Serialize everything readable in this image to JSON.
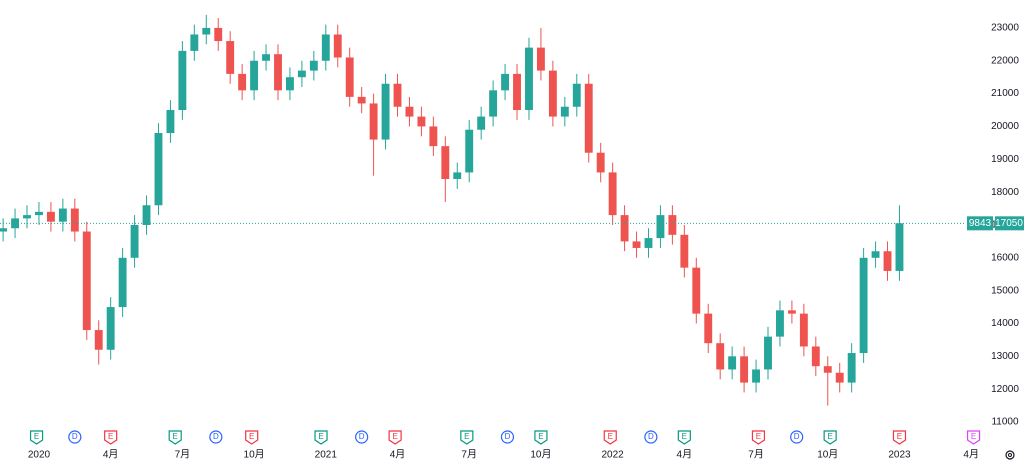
{
  "chart_data": {
    "type": "candlestick",
    "up_color": "#26a69a",
    "down_color": "#ef5350",
    "grid": false,
    "xlim": [
      -1.63,
      41.21
    ],
    "ylim": [
      10300,
      23850
    ],
    "yticks": [
      11000,
      12000,
      13000,
      14000,
      15000,
      16000,
      17000,
      18000,
      19000,
      20000,
      21000,
      22000,
      23000
    ],
    "xticks": [
      {
        "value": 0,
        "label": "2020"
      },
      {
        "value": 3,
        "label": "4月"
      },
      {
        "value": 6,
        "label": "7月"
      },
      {
        "value": 9,
        "label": "10月"
      },
      {
        "value": 12,
        "label": "2021"
      },
      {
        "value": 15,
        "label": "4月"
      },
      {
        "value": 18,
        "label": "7月"
      },
      {
        "value": 21,
        "label": "10月"
      },
      {
        "value": 24,
        "label": "2022"
      },
      {
        "value": 27,
        "label": "4月"
      },
      {
        "value": 30,
        "label": "7月"
      },
      {
        "value": 33,
        "label": "10月"
      },
      {
        "value": 36,
        "label": "2023"
      },
      {
        "value": 39,
        "label": "4月"
      }
    ],
    "x": [
      -1.5,
      -1,
      -0.5,
      0,
      0.5,
      1,
      1.5,
      2,
      2.5,
      3,
      3.5,
      4,
      4.5,
      5,
      5.5,
      6,
      6.5,
      7,
      7.5,
      8,
      8.5,
      9,
      9.5,
      10,
      10.5,
      11,
      11.5,
      12,
      12.5,
      13,
      13.5,
      14,
      14.5,
      15,
      15.5,
      16,
      16.5,
      17,
      17.5,
      18,
      18.5,
      19,
      19.5,
      20,
      20.5,
      21,
      21.5,
      22,
      22.5,
      23,
      23.5,
      24,
      24.5,
      25,
      25.5,
      26,
      26.5,
      27,
      27.5,
      28,
      28.5,
      29,
      29.5,
      30,
      30.5,
      31,
      31.5,
      32,
      32.5,
      33,
      33.5,
      34,
      34.5,
      35,
      35.5,
      36
    ],
    "open": [
      16800,
      16900,
      17200,
      17300,
      17400,
      17100,
      17500,
      16800,
      13800,
      13200,
      14500,
      16000,
      17000,
      17600,
      19800,
      20500,
      22300,
      22800,
      23000,
      22600,
      21600,
      21100,
      22000,
      22200,
      21100,
      21500,
      21700,
      22000,
      22800,
      22100,
      20900,
      20700,
      19600,
      21300,
      20600,
      20300,
      20000,
      19400,
      18400,
      18600,
      19900,
      20300,
      21100,
      21600,
      20500,
      22400,
      21700,
      20300,
      20600,
      21300,
      19200,
      18600,
      17300,
      16500,
      16300,
      16600,
      17300,
      16700,
      15700,
      14300,
      13400,
      12600,
      13000,
      12200,
      12600,
      13600,
      14400,
      14300,
      13300,
      12700,
      12500,
      12200,
      13100,
      16000,
      16200,
      15600
    ],
    "high": [
      17200,
      17500,
      17600,
      17700,
      17700,
      17800,
      17800,
      17100,
      14100,
      14800,
      16300,
      17300,
      17900,
      20100,
      20800,
      22600,
      23100,
      23400,
      23300,
      22900,
      21900,
      22300,
      22500,
      22500,
      21800,
      22000,
      22300,
      23100,
      23100,
      22400,
      21200,
      21000,
      21600,
      21600,
      20900,
      20600,
      20300,
      19700,
      18900,
      20200,
      20600,
      21400,
      21900,
      21900,
      22700,
      23000,
      22000,
      20900,
      21600,
      21600,
      19500,
      18900,
      17600,
      16800,
      16900,
      17600,
      17600,
      17000,
      16000,
      14600,
      13700,
      13300,
      13300,
      12900,
      13900,
      14700,
      14700,
      14600,
      13600,
      13000,
      12800,
      13400,
      16300,
      16500,
      16500,
      17600
    ],
    "low": [
      16500,
      16600,
      16900,
      17000,
      16800,
      16800,
      16500,
      13500,
      12750,
      12900,
      14200,
      15700,
      16700,
      17300,
      19500,
      20200,
      22000,
      22500,
      22300,
      21300,
      20800,
      20800,
      21700,
      20800,
      20800,
      21200,
      21400,
      21700,
      21800,
      20600,
      20400,
      18500,
      19300,
      20300,
      20000,
      19700,
      19100,
      17700,
      18100,
      18300,
      19600,
      20000,
      20800,
      20200,
      20200,
      21400,
      20000,
      20000,
      20300,
      18900,
      18300,
      17000,
      16200,
      16000,
      16000,
      16300,
      16400,
      15400,
      14000,
      13100,
      12300,
      12300,
      11900,
      11900,
      12300,
      13300,
      14000,
      13000,
      12400,
      11500,
      11900,
      11900,
      12800,
      15700,
      15300,
      15300
    ],
    "close": [
      16900,
      17200,
      17300,
      17400,
      17100,
      17500,
      16800,
      13800,
      13200,
      14500,
      16000,
      17000,
      17600,
      19800,
      20500,
      22300,
      22800,
      23000,
      22600,
      21600,
      21100,
      22000,
      22200,
      21100,
      21500,
      21700,
      22000,
      22800,
      22100,
      20900,
      20700,
      19600,
      21300,
      20600,
      20300,
      20000,
      19400,
      18400,
      18600,
      19900,
      20300,
      21100,
      21600,
      20500,
      22400,
      21700,
      20300,
      20600,
      21300,
      19200,
      18600,
      17300,
      16500,
      16300,
      16600,
      17300,
      16700,
      15700,
      14300,
      13400,
      12600,
      13000,
      12200,
      12600,
      13600,
      14400,
      14300,
      13300,
      12700,
      12500,
      12200,
      13100,
      16000,
      16200,
      15600,
      17050
    ],
    "price_line": {
      "value": 17050,
      "badge": "9843",
      "color": "#26a69a"
    },
    "events": [
      {
        "x": -0.1,
        "label": "E",
        "color": "#089981",
        "shape": "flag"
      },
      {
        "x": 1.5,
        "label": "D",
        "color": "#2962ff",
        "shape": "circle"
      },
      {
        "x": 3.0,
        "label": "E",
        "color": "#f23645",
        "shape": "flag"
      },
      {
        "x": 5.7,
        "label": "E",
        "color": "#089981",
        "shape": "flag"
      },
      {
        "x": 7.4,
        "label": "D",
        "color": "#2962ff",
        "shape": "circle"
      },
      {
        "x": 8.9,
        "label": "E",
        "color": "#f23645",
        "shape": "flag"
      },
      {
        "x": 11.8,
        "label": "E",
        "color": "#089981",
        "shape": "flag"
      },
      {
        "x": 13.5,
        "label": "D",
        "color": "#2962ff",
        "shape": "circle"
      },
      {
        "x": 14.9,
        "label": "E",
        "color": "#f23645",
        "shape": "flag"
      },
      {
        "x": 17.9,
        "label": "E",
        "color": "#089981",
        "shape": "flag"
      },
      {
        "x": 19.6,
        "label": "D",
        "color": "#2962ff",
        "shape": "circle"
      },
      {
        "x": 21.0,
        "label": "E",
        "color": "#089981",
        "shape": "flag"
      },
      {
        "x": 23.9,
        "label": "E",
        "color": "#f23645",
        "shape": "flag"
      },
      {
        "x": 25.6,
        "label": "D",
        "color": "#2962ff",
        "shape": "circle"
      },
      {
        "x": 27.0,
        "label": "E",
        "color": "#089981",
        "shape": "flag"
      },
      {
        "x": 30.1,
        "label": "E",
        "color": "#f23645",
        "shape": "flag"
      },
      {
        "x": 31.7,
        "label": "D",
        "color": "#2962ff",
        "shape": "circle"
      },
      {
        "x": 33.1,
        "label": "E",
        "color": "#089981",
        "shape": "flag"
      },
      {
        "x": 36.0,
        "label": "E",
        "color": "#f23645",
        "shape": "flag"
      },
      {
        "x": 39.1,
        "label": "E",
        "color": "#e040fb",
        "shape": "flag"
      }
    ]
  }
}
